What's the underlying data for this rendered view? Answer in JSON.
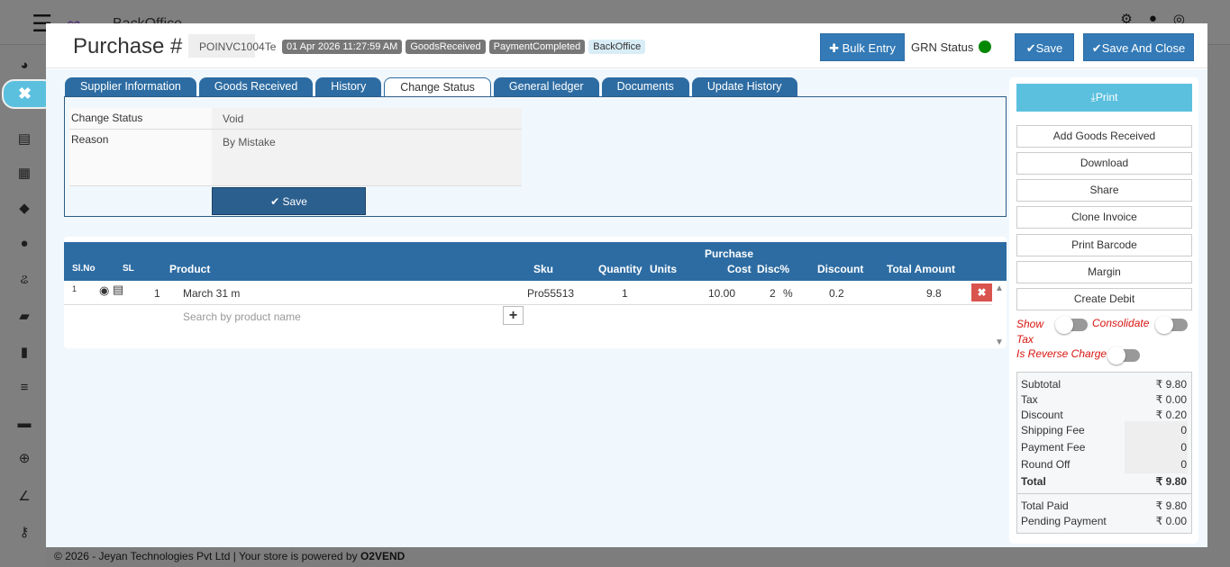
{
  "background": {
    "brand": "BackOffice",
    "footer_text": "© 2026 - Jeyan Technologies Pvt Ltd | Your store is powered by",
    "footer_brand": "O2VEND"
  },
  "header": {
    "title": "Purchase #",
    "invoice_no": "POINVC1004Te",
    "badges": [
      "01 Apr 2026 11:27:59 AM",
      "GoodsReceived",
      "PaymentCompleted",
      "BackOffice"
    ],
    "bulk_entry": "Bulk Entry",
    "grn_status_label": "GRN Status",
    "grn_status_color": "#008000",
    "save": "Save",
    "save_close": "Save And Close"
  },
  "tabs": [
    "Supplier Information",
    "Goods Received",
    "History",
    "Change Status",
    "General ledger",
    "Documents",
    "Update History"
  ],
  "active_tab": "Change Status",
  "change_status": {
    "status_label": "Change Status",
    "status_value": "Void",
    "reason_label": "Reason",
    "reason_value": "By Mistake",
    "save": "Save"
  },
  "grid": {
    "headers": {
      "slno": "Sl.No",
      "sl": "SL",
      "product": "Product",
      "sku": "Sku",
      "quantity": "Quantity",
      "units": "Units",
      "purchase": "Purchase",
      "cost": "Cost",
      "disc": "Disc%",
      "discount": "Discount",
      "total": "Total Amount"
    },
    "rows": [
      {
        "slno": "1",
        "sl": "1",
        "product": "March 31 m",
        "sku": "Pro55513",
        "quantity": "1",
        "units": "",
        "cost": "10.00",
        "disc": "2",
        "disc_unit": "%",
        "discount": "0.2",
        "total": "9.8"
      }
    ],
    "search_placeholder": "Search by product name"
  },
  "actions": {
    "print": "Print",
    "buttons": [
      "Add Goods Received",
      "Download",
      "Share",
      "Clone Invoice",
      "Print Barcode",
      "Margin",
      "Create Debit"
    ],
    "toggles": {
      "show_tax": "Show Tax",
      "consolidate": "Consolidate",
      "reverse_charge": "Is Reverse Charge"
    }
  },
  "summary": {
    "subtotal_label": "Subtotal",
    "subtotal": "₹ 9.80",
    "tax_label": "Tax",
    "tax": "₹ 0.00",
    "discount_label": "Discount",
    "discount": "₹ 0.20",
    "shipping_label": "Shipping Fee",
    "shipping": "0",
    "payment_fee_label": "Payment Fee",
    "payment_fee": "0",
    "round_off_label": "Round Off",
    "round_off": "0",
    "total_label": "Total",
    "total": "₹ 9.80",
    "paid_label": "Total Paid",
    "paid": "₹ 9.80",
    "pending_label": "Pending Payment",
    "pending": "₹ 0.00"
  }
}
